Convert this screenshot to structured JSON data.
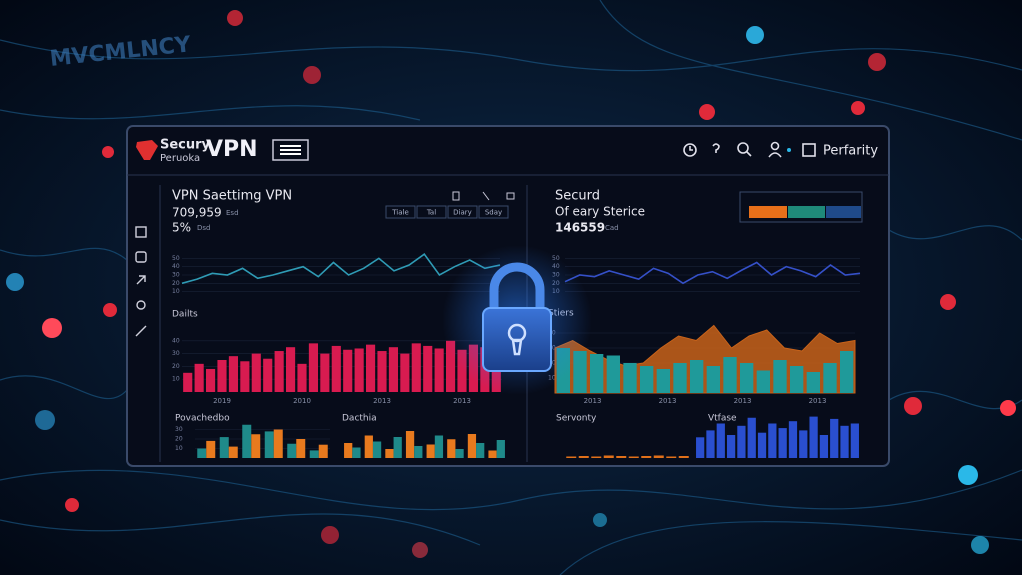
{
  "background": {
    "text": "MVCMLNCY"
  },
  "header": {
    "brand_top": "Secury",
    "brand_bottom": "Peruoka",
    "brand_name": "VPN",
    "user": "Perfarity"
  },
  "left": {
    "title": "VPN Saettimg VPN",
    "stat_main": "709,959",
    "stat_main_unit": "Esd",
    "stat_sub": "5%",
    "stat_sub_unit": "Dsd",
    "tabs": [
      "Tiale",
      "Tal",
      "Diary",
      "Sday"
    ]
  },
  "right": {
    "title": "Securd",
    "subtitle": "Of eary Sterice",
    "stat_main": "146559",
    "stat_main_unit": "Cad"
  },
  "charts": [
    {
      "type": "line",
      "ylim": [
        0,
        60
      ],
      "yticks": [
        10,
        20,
        30,
        40,
        50
      ],
      "series": [
        {
          "color": "#2f9bb5",
          "values": [
            20,
            25,
            32,
            30,
            38,
            26,
            30,
            35,
            40,
            28,
            45,
            30,
            38,
            50,
            35,
            42,
            55,
            30,
            40,
            48,
            38,
            42
          ]
        }
      ]
    },
    {
      "type": "bar",
      "label": "Dailts",
      "xlabels": [
        "2019",
        "2010",
        "2013",
        "2013"
      ],
      "ylim": [
        0,
        50
      ],
      "yticks": [
        10,
        20,
        30,
        40
      ],
      "series": [
        {
          "color": "#d81b50",
          "values": [
            15,
            22,
            18,
            25,
            28,
            24,
            30,
            26,
            32,
            35,
            22,
            38,
            30,
            36,
            33,
            34,
            37,
            32,
            35,
            30,
            38,
            36,
            34,
            40,
            33,
            37,
            35,
            38
          ]
        }
      ]
    },
    {
      "type": "bar",
      "label": "Povachedbo",
      "ylim": [
        0,
        40
      ],
      "yticks": [
        10,
        20,
        30
      ],
      "series": [
        {
          "color": "#1f8a8a",
          "values": [
            10,
            22,
            35,
            28,
            15,
            8
          ]
        },
        {
          "color": "#e87a1e",
          "values": [
            18,
            12,
            25,
            30,
            20,
            14
          ]
        }
      ]
    },
    {
      "type": "bar",
      "label": "Dacthia",
      "ylim": [
        0,
        40
      ],
      "series": [
        {
          "color": "#e87a1e",
          "values": [
            20,
            30,
            12,
            36,
            18,
            25,
            32,
            10
          ]
        },
        {
          "color": "#1f8a8a",
          "values": [
            14,
            22,
            28,
            16,
            30,
            12,
            20,
            24
          ]
        }
      ]
    },
    {
      "type": "line",
      "ylim": [
        0,
        60
      ],
      "yticks": [
        10,
        20,
        30,
        40,
        50
      ],
      "series": [
        {
          "color": "#3550c8",
          "values": [
            22,
            30,
            28,
            35,
            30,
            25,
            38,
            32,
            20,
            30,
            34,
            26,
            36,
            45,
            30,
            40,
            35,
            28,
            42,
            30,
            32
          ]
        }
      ]
    },
    {
      "type": "bar",
      "label": "Stiers",
      "xlabels": [
        "2013",
        "2013",
        "2013",
        "2013"
      ],
      "ylim": [
        0,
        50
      ],
      "yticks": [
        10,
        20,
        30,
        40
      ],
      "series": [
        {
          "color": "#c8631a",
          "kind": "area",
          "values": [
            30,
            35,
            28,
            22,
            18,
            20,
            30,
            38,
            35,
            45,
            30,
            38,
            42,
            30,
            28,
            40,
            33,
            35
          ]
        },
        {
          "color": "#1f9a9a",
          "values": [
            30,
            28,
            26,
            25,
            20,
            18,
            16,
            20,
            22,
            18,
            24,
            20,
            15,
            22,
            18,
            14,
            20,
            28
          ]
        }
      ]
    },
    {
      "type": "bar",
      "label": "Servonty",
      "ylim": [
        0,
        20
      ],
      "series": [
        {
          "color": "#e0701a",
          "values": [
            3,
            4,
            3,
            5,
            4,
            3,
            4,
            5,
            3,
            4
          ]
        }
      ]
    },
    {
      "type": "bar",
      "label": "Vtfase",
      "ylim": [
        0,
        40
      ],
      "series": [
        {
          "color": "#2a4fd0",
          "values": [
            18,
            24,
            30,
            20,
            28,
            35,
            22,
            30,
            26,
            32,
            24,
            36,
            20,
            34,
            28,
            30
          ]
        }
      ]
    }
  ]
}
